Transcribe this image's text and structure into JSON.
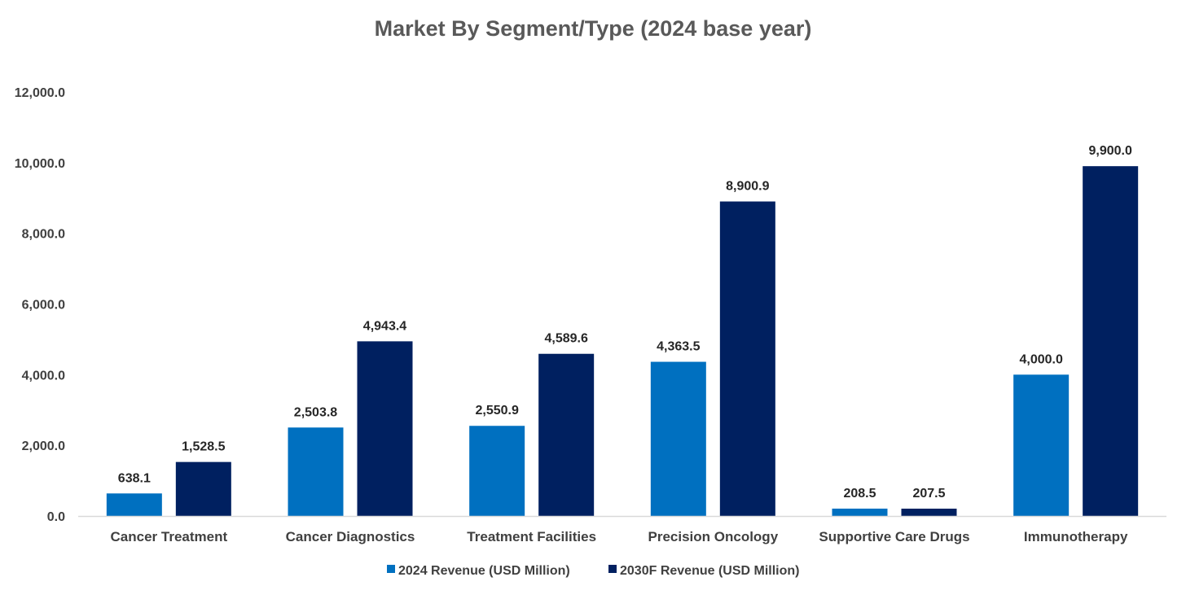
{
  "chart_data": {
    "type": "bar",
    "title": "Market By Segment/Type (2024 base year)",
    "xlabel": "",
    "ylabel": "",
    "ylim": [
      0,
      12000
    ],
    "yticks": [
      0,
      2000,
      4000,
      6000,
      8000,
      10000,
      12000
    ],
    "ytick_labels": [
      "0.0",
      "2,000.0",
      "4,000.0",
      "6,000.0",
      "8,000.0",
      "10,000.0",
      "12,000.0"
    ],
    "grid": false,
    "legend_position": "bottom-center",
    "categories": [
      "Cancer Treatment",
      "Cancer Diagnostics",
      "Treatment Facilities",
      "Precision Oncology",
      "Supportive Care Drugs",
      "Immunotherapy"
    ],
    "series": [
      {
        "name": "2024 Revenue (USD Million)",
        "color": "#0070C0",
        "values": [
          638.1,
          2503.8,
          2550.9,
          4363.5,
          208.5,
          4000.0
        ],
        "labels": [
          "638.1",
          "2,503.8",
          "2,550.9",
          "4,363.5",
          "208.5",
          "4,000.0"
        ]
      },
      {
        "name": "2030F Revenue (USD Million)",
        "color": "#002060",
        "values": [
          1528.5,
          4943.4,
          4589.6,
          8900.9,
          207.5,
          9900.0
        ],
        "labels": [
          "1,528.5",
          "4,943.4",
          "4,589.6",
          "8,900.9",
          "207.5",
          "9,900.0"
        ]
      }
    ]
  },
  "colors": {
    "axis": "#D9D9D9"
  }
}
